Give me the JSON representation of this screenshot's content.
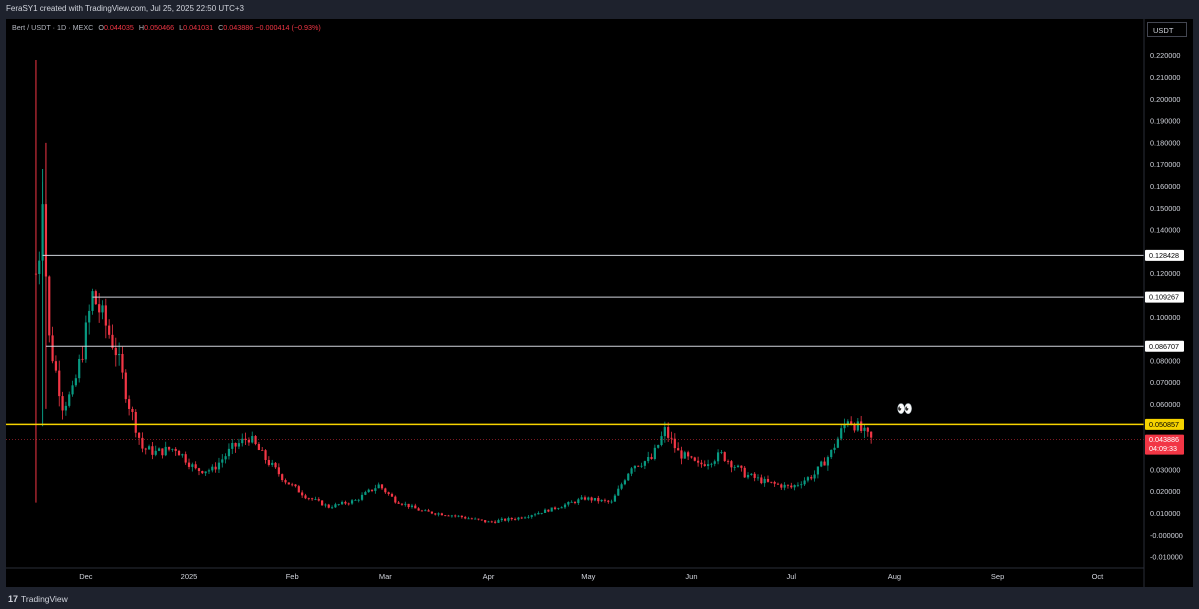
{
  "header": {
    "attribution": "FeraSY1 created with TradingView.com, Jul 25, 2025 22:50 UTC+3"
  },
  "legend": {
    "symbol": "Bert / USDT · 1D · MEXC",
    "open_label": "O",
    "open": "0.044035",
    "high_label": "H",
    "high": "0.050466",
    "low_label": "L",
    "low": "0.041031",
    "close_label": "C",
    "close": "0.043886",
    "change": "−0.000414 (−0.93%)"
  },
  "scale": {
    "currency_label": "USDT"
  },
  "footer": {
    "brand": "TradingView",
    "brand_icon": "tradingview-logo-icon"
  },
  "annotation": {
    "icon": "eyes-icon",
    "glyph": "👀"
  },
  "colors": {
    "up": "#089981",
    "down": "#f23645",
    "support_line": "#f5d300",
    "level_line": "#d1d4dc",
    "background": "#000000"
  },
  "chart_data": {
    "type": "candlestick",
    "title": "",
    "xlabel": "",
    "ylabel": "",
    "ylim": [
      -0.015,
      0.235
    ],
    "y_ticks": [
      "0.220000",
      "0.210000",
      "0.200000",
      "0.190000",
      "0.180000",
      "0.170000",
      "0.160000",
      "0.150000",
      "0.140000",
      "0.120000",
      "0.100000",
      "0.080000",
      "0.070000",
      "0.060000",
      "0.030000",
      "0.020000",
      "0.010000",
      "-0.000000",
      "-0.010000"
    ],
    "y_tick_values": [
      0.22,
      0.21,
      0.2,
      0.19,
      0.18,
      0.17,
      0.16,
      0.15,
      0.14,
      0.12,
      0.1,
      0.08,
      0.07,
      0.06,
      0.03,
      0.02,
      0.01,
      0.0,
      -0.01
    ],
    "x_ticks": [
      "Dec",
      "2025",
      "Feb",
      "Mar",
      "Apr",
      "May",
      "Jun",
      "Jul",
      "Aug",
      "Sep",
      "Oct"
    ],
    "x_tick_dates": [
      "2024-12-01",
      "2025-01-01",
      "2025-02-01",
      "2025-03-01",
      "2025-04-01",
      "2025-05-01",
      "2025-06-01",
      "2025-07-01",
      "2025-08-01",
      "2025-09-01",
      "2025-10-01"
    ],
    "x_range": [
      "2024-11-07",
      "2025-10-15"
    ],
    "horizontal_levels": [
      {
        "value": 0.128428,
        "label": "0.128428",
        "start_date": "2024-11-18",
        "kind": "resistance"
      },
      {
        "value": 0.109267,
        "label": "0.109267",
        "start_date": "2024-12-03",
        "kind": "resistance"
      },
      {
        "value": 0.086707,
        "label": "0.086707",
        "start_date": "2024-11-19",
        "kind": "resistance"
      },
      {
        "value": 0.050857,
        "label": "0.050857",
        "start_date": "2024-11-07",
        "kind": "support"
      }
    ],
    "last_price": {
      "value": 0.043886,
      "label": "0.043886",
      "countdown": "04:09:33"
    },
    "approx_price_path": [
      [
        "2024-11-16",
        0.12
      ],
      [
        "2024-11-17",
        0.13
      ],
      [
        "2024-11-18",
        0.16
      ],
      [
        "2024-11-19",
        0.12
      ],
      [
        "2024-11-20",
        0.09
      ],
      [
        "2024-11-22",
        0.075
      ],
      [
        "2024-11-24",
        0.06
      ],
      [
        "2024-11-27",
        0.065
      ],
      [
        "2024-11-30",
        0.085
      ],
      [
        "2024-12-03",
        0.11
      ],
      [
        "2024-12-06",
        0.1
      ],
      [
        "2024-12-10",
        0.085
      ],
      [
        "2024-12-14",
        0.06
      ],
      [
        "2024-12-18",
        0.04
      ],
      [
        "2024-12-22",
        0.038
      ],
      [
        "2024-12-28",
        0.04
      ],
      [
        "2025-01-03",
        0.03
      ],
      [
        "2025-01-08",
        0.03
      ],
      [
        "2025-01-14",
        0.04
      ],
      [
        "2025-01-19",
        0.045
      ],
      [
        "2025-01-24",
        0.035
      ],
      [
        "2025-01-30",
        0.025
      ],
      [
        "2025-02-05",
        0.018
      ],
      [
        "2025-02-12",
        0.013
      ],
      [
        "2025-02-20",
        0.016
      ],
      [
        "2025-02-27",
        0.023
      ],
      [
        "2025-03-04",
        0.016
      ],
      [
        "2025-03-12",
        0.011
      ],
      [
        "2025-03-22",
        0.009
      ],
      [
        "2025-04-01",
        0.006
      ],
      [
        "2025-04-10",
        0.008
      ],
      [
        "2025-04-20",
        0.012
      ],
      [
        "2025-04-30",
        0.017
      ],
      [
        "2025-05-08",
        0.015
      ],
      [
        "2025-05-14",
        0.032
      ],
      [
        "2025-05-20",
        0.035
      ],
      [
        "2025-05-24",
        0.048
      ],
      [
        "2025-05-28",
        0.038
      ],
      [
        "2025-06-03",
        0.032
      ],
      [
        "2025-06-10",
        0.037
      ],
      [
        "2025-06-17",
        0.028
      ],
      [
        "2025-06-24",
        0.024
      ],
      [
        "2025-07-01",
        0.022
      ],
      [
        "2025-07-08",
        0.028
      ],
      [
        "2025-07-13",
        0.038
      ],
      [
        "2025-07-18",
        0.054
      ],
      [
        "2025-07-22",
        0.048
      ],
      [
        "2025-07-25",
        0.0439
      ]
    ]
  }
}
